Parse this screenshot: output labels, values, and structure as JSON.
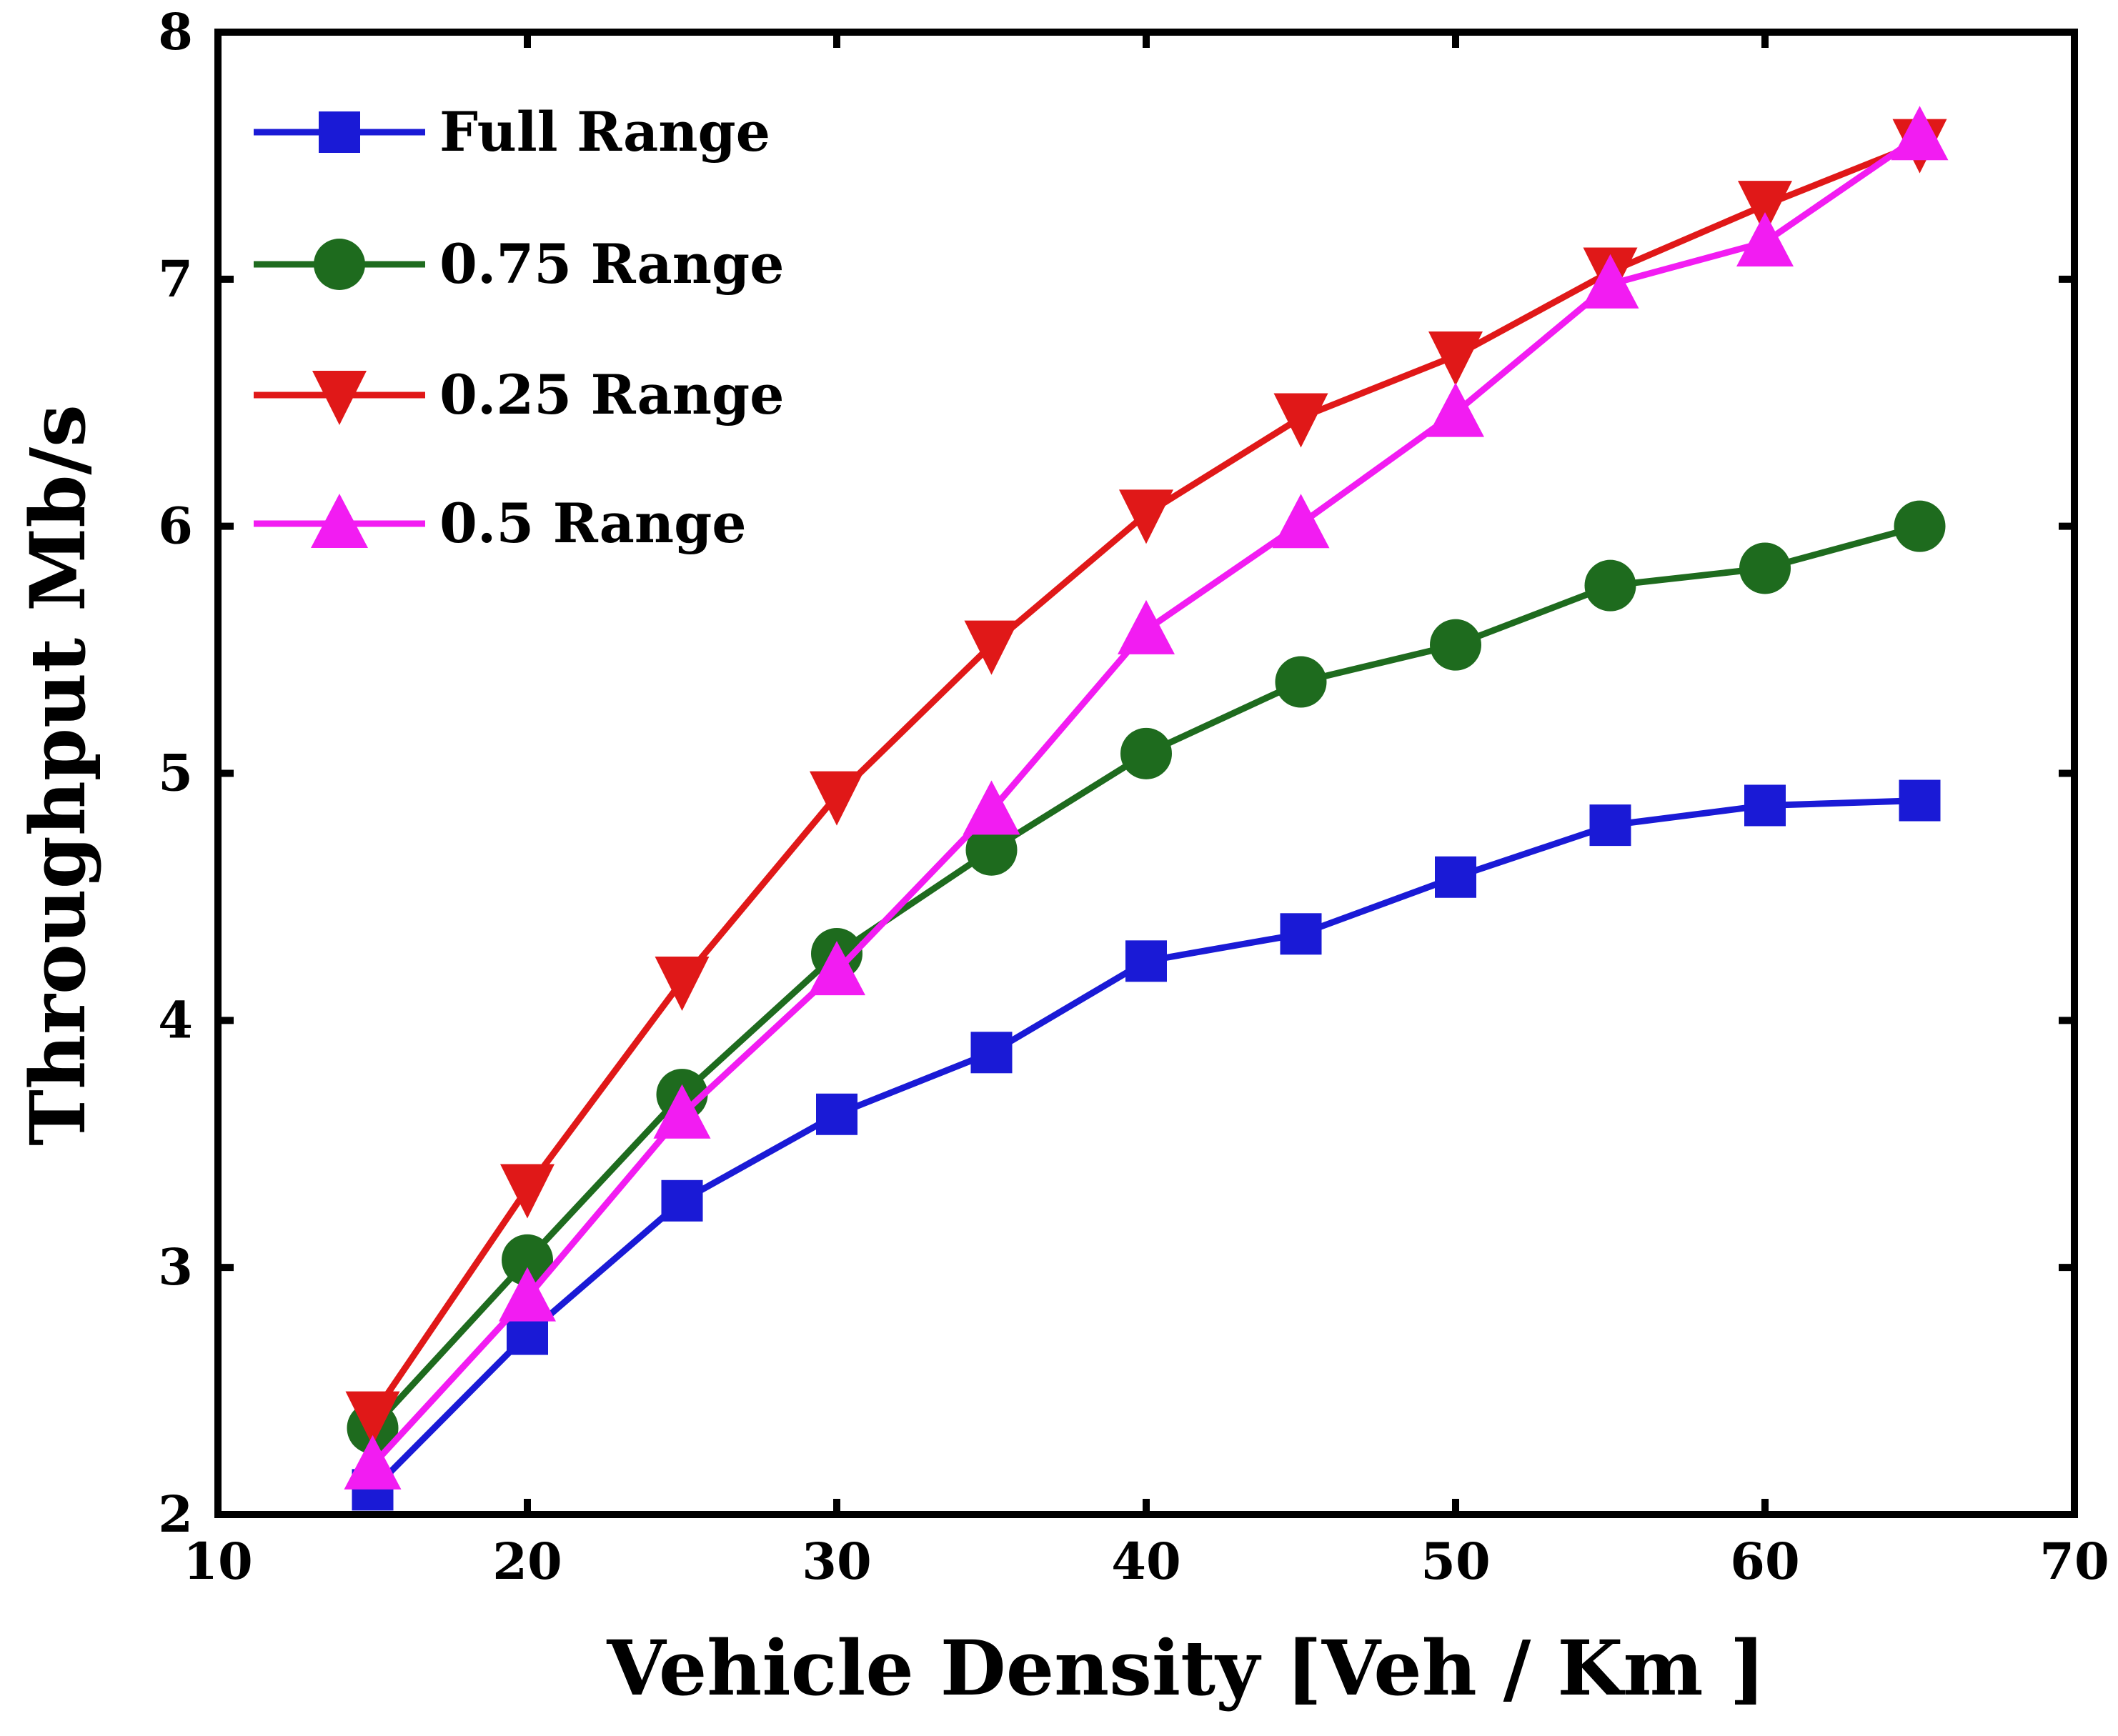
{
  "chart_data": {
    "type": "line",
    "title": "",
    "xlabel": "Vehicle Density [Veh / Km ]",
    "ylabel": "Throughput Mb/s",
    "xlim": [
      10,
      70
    ],
    "ylim": [
      2,
      8
    ],
    "xticks": [
      "10",
      "20",
      "30",
      "40",
      "50",
      "60",
      "70"
    ],
    "yticks": [
      "2",
      "3",
      "4",
      "5",
      "6",
      "7",
      "8"
    ],
    "grid": false,
    "legend_position": "top-left",
    "x": [
      15,
      20,
      25,
      30,
      35,
      40,
      45,
      50,
      55,
      60,
      65
    ],
    "series": [
      {
        "name": "Full Range",
        "color": "#1a1ad6",
        "marker": "square",
        "values": [
          2.1,
          2.73,
          3.27,
          3.62,
          3.87,
          4.24,
          4.35,
          4.58,
          4.79,
          4.87,
          4.89
        ]
      },
      {
        "name": "0.75 Range",
        "color": "#1e6b1e",
        "marker": "circle",
        "values": [
          2.35,
          3.03,
          3.7,
          4.27,
          4.69,
          5.08,
          5.37,
          5.52,
          5.76,
          5.83,
          6.0
        ]
      },
      {
        "name": "0.25 Range",
        "color": "#e01818",
        "marker": "triangle-down",
        "values": [
          2.4,
          3.32,
          4.16,
          4.91,
          5.52,
          6.05,
          6.44,
          6.69,
          7.03,
          7.3,
          7.55
        ]
      },
      {
        "name": "0.5 Range",
        "color": "#f21cf2",
        "marker": "triangle-up",
        "values": [
          2.2,
          2.88,
          3.62,
          4.2,
          4.85,
          5.58,
          6.01,
          6.46,
          6.98,
          7.15,
          7.58
        ]
      }
    ]
  }
}
